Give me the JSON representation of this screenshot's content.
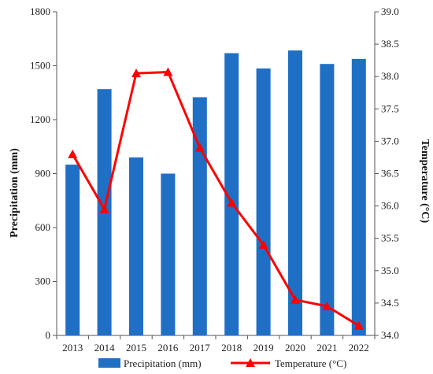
{
  "chart_data": {
    "type": "bar",
    "categories": [
      "2013",
      "2014",
      "2015",
      "2016",
      "2017",
      "2018",
      "2019",
      "2020",
      "2021",
      "2022"
    ],
    "series": [
      {
        "name": "Precipitation (mm)",
        "type": "bar",
        "axis": "left",
        "color": "#1f6fc5",
        "values": [
          950,
          1370,
          990,
          900,
          1325,
          1570,
          1485,
          1585,
          1510,
          1538
        ]
      },
      {
        "name": "Temperature (°C)",
        "type": "line",
        "axis": "right",
        "color": "#ff0000",
        "marker": "triangle",
        "values": [
          36.8,
          35.95,
          38.05,
          38.07,
          36.9,
          36.05,
          35.4,
          34.55,
          34.45,
          34.15
        ]
      }
    ],
    "ylabel": "Precipitation (mm)",
    "y2label": "Temperature (°C)",
    "ylim": [
      0,
      1800
    ],
    "yticks": [
      "0",
      "300",
      "600",
      "900",
      "1200",
      "1500",
      "1800"
    ],
    "y2lim": [
      34.0,
      39.0
    ],
    "y2ticks": [
      "34.0",
      "34.5",
      "35.0",
      "35.5",
      "36.0",
      "36.5",
      "37.0",
      "37.5",
      "38.0",
      "38.5",
      "39.0"
    ],
    "grid": false,
    "legend_position": "bottom"
  }
}
